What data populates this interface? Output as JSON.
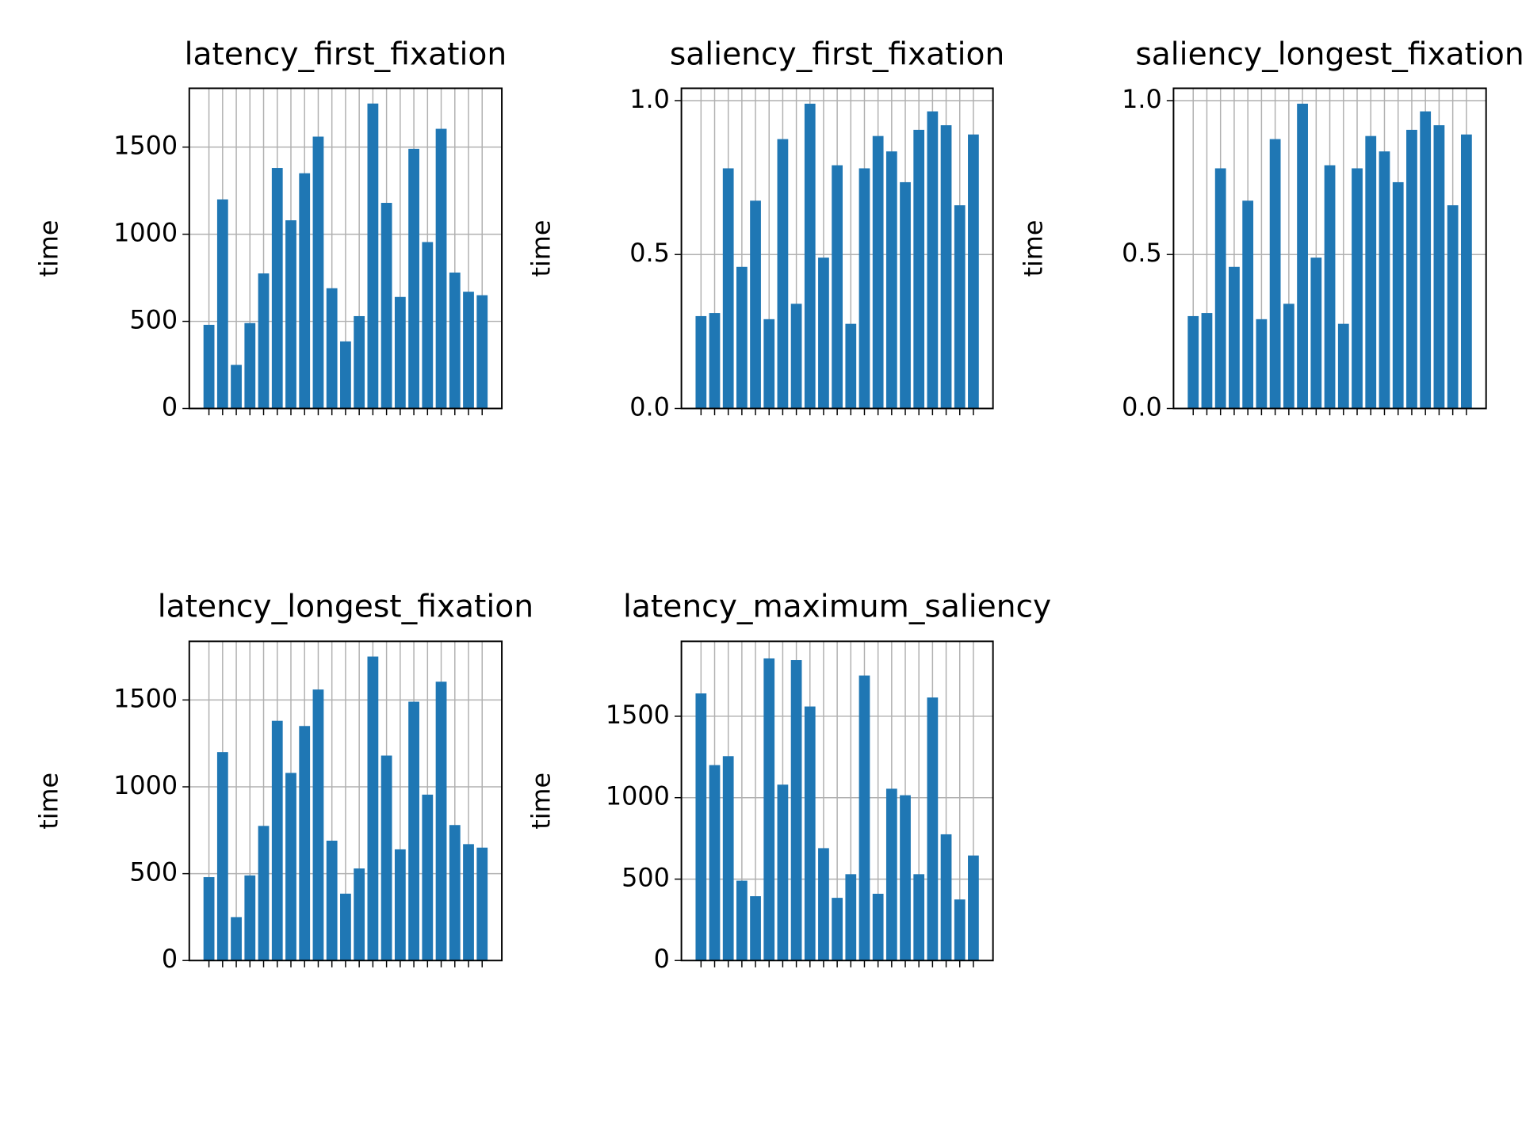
{
  "chart_data": [
    {
      "type": "bar",
      "title": "latency_first_fixation",
      "y_label": "time",
      "color": "#1f77b4",
      "grid": true,
      "categories": [
        null,
        null,
        null,
        null,
        null,
        null,
        null,
        null,
        null,
        null,
        null,
        null,
        null,
        null,
        null,
        null,
        null,
        null,
        null,
        null,
        null
      ],
      "values": [
        480,
        1200,
        250,
        490,
        775,
        1380,
        1080,
        1350,
        1560,
        690,
        385,
        530,
        1750,
        1180,
        640,
        1490,
        955,
        1605,
        780,
        670,
        650
      ],
      "ylim": [
        0,
        1837.5
      ],
      "yticks": [
        0,
        500,
        1000,
        1500
      ]
    },
    {
      "type": "bar",
      "title": "saliency_first_fixation",
      "y_label": "time",
      "color": "#1f77b4",
      "grid": true,
      "categories": [
        null,
        null,
        null,
        null,
        null,
        null,
        null,
        null,
        null,
        null,
        null,
        null,
        null,
        null,
        null,
        null,
        null,
        null,
        null,
        null,
        null
      ],
      "values": [
        0.3,
        0.31,
        0.78,
        0.46,
        0.675,
        0.29,
        0.875,
        0.34,
        0.99,
        0.49,
        0.79,
        0.275,
        0.78,
        0.885,
        0.835,
        0.735,
        0.905,
        0.965,
        0.92,
        0.66,
        0.89
      ],
      "ylim": [
        0,
        1.04
      ],
      "yticks": [
        {
          "value": 0,
          "label": "0.0"
        },
        0.5,
        {
          "value": 1,
          "label": "1.0"
        }
      ]
    },
    {
      "type": "bar",
      "title": "saliency_longest_fixation",
      "y_label": "time",
      "color": "#1f77b4",
      "grid": true,
      "categories": [
        null,
        null,
        null,
        null,
        null,
        null,
        null,
        null,
        null,
        null,
        null,
        null,
        null,
        null,
        null,
        null,
        null,
        null,
        null,
        null,
        null
      ],
      "values": [
        0.3,
        0.31,
        0.78,
        0.46,
        0.675,
        0.29,
        0.875,
        0.34,
        0.99,
        0.49,
        0.79,
        0.275,
        0.78,
        0.885,
        0.835,
        0.735,
        0.905,
        0.965,
        0.92,
        0.66,
        0.89
      ],
      "ylim": [
        0,
        1.04
      ],
      "yticks": [
        {
          "value": 0,
          "label": "0.0"
        },
        0.5,
        {
          "value": 1,
          "label": "1.0"
        }
      ]
    },
    {
      "type": "bar",
      "title": "latency_longest_fixation",
      "y_label": "time",
      "color": "#1f77b4",
      "grid": true,
      "categories": [
        null,
        null,
        null,
        null,
        null,
        null,
        null,
        null,
        null,
        null,
        null,
        null,
        null,
        null,
        null,
        null,
        null,
        null,
        null,
        null,
        null
      ],
      "values": [
        480,
        1200,
        250,
        490,
        775,
        1380,
        1080,
        1350,
        1560,
        690,
        385,
        530,
        1750,
        1180,
        640,
        1490,
        955,
        1605,
        780,
        670,
        650
      ],
      "ylim": [
        0,
        1837.5
      ],
      "yticks": [
        0,
        500,
        1000,
        1500
      ]
    },
    {
      "type": "bar",
      "title": "latency_maximum_saliency",
      "y_label": "time",
      "color": "#1f77b4",
      "grid": true,
      "categories": [
        null,
        null,
        null,
        null,
        null,
        null,
        null,
        null,
        null,
        null,
        null,
        null,
        null,
        null,
        null,
        null,
        null,
        null,
        null,
        null,
        null
      ],
      "values": [
        1640,
        1200,
        1255,
        490,
        395,
        1855,
        1080,
        1845,
        1560,
        690,
        385,
        530,
        1750,
        410,
        1055,
        1015,
        530,
        1615,
        775,
        375,
        645
      ],
      "ylim": [
        0,
        1960
      ],
      "yticks": [
        0,
        500,
        1000,
        1500
      ]
    }
  ]
}
